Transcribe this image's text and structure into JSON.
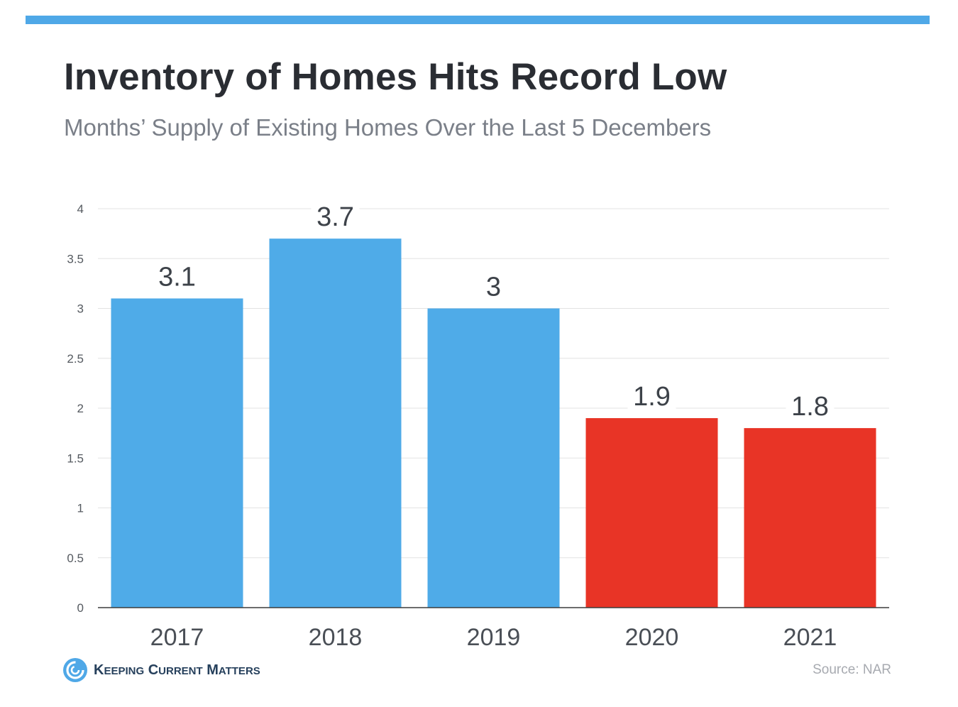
{
  "header": {
    "title": "Inventory of Homes Hits Record Low",
    "subtitle": "Months’ Supply of Existing Homes Over the Last 5 Decembers"
  },
  "colors": {
    "accent_bar": "#4fa8e7",
    "bar_blue": "#4fabe8",
    "bar_red": "#e83426",
    "grid": "#e3e3e3",
    "axis": "#3c3c3c"
  },
  "chart_data": {
    "type": "bar",
    "title": "Inventory of Homes Hits Record Low",
    "subtitle": "Months’ Supply of Existing Homes Over the Last 5 Decembers",
    "categories": [
      "2017",
      "2018",
      "2019",
      "2020",
      "2021"
    ],
    "values": [
      3.1,
      3.7,
      3,
      1.9,
      1.8
    ],
    "value_labels": [
      "3.1",
      "3.7",
      "3",
      "1.9",
      "1.8"
    ],
    "bar_colors": [
      "#4fabe8",
      "#4fabe8",
      "#4fabe8",
      "#e83426",
      "#e83426"
    ],
    "xlabel": "",
    "ylabel": "",
    "ylim": [
      0,
      4
    ],
    "yticks": [
      "0",
      "0.5",
      "1",
      "1.5",
      "2",
      "2.5",
      "3",
      "3.5",
      "4"
    ],
    "grid": true,
    "legend": "none"
  },
  "footer": {
    "logo_text": "Keeping Current Matters",
    "logo_icon": "kcm-swirl-icon",
    "source": "Source: NAR"
  }
}
